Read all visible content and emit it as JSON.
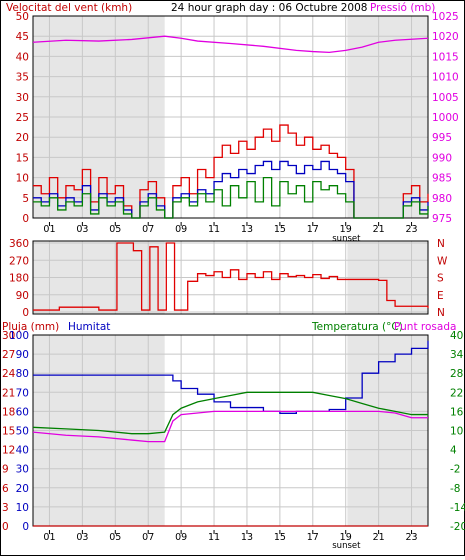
{
  "colors": {
    "wind": "#e00000",
    "wind_avg": "#0000c0",
    "gust_green": "#008000",
    "pressure": "#e000e0",
    "direction": "#e00000",
    "rain": "#c00000",
    "humidity": "#0000c0",
    "temperature": "#008000",
    "dewpoint": "#e000e0",
    "grid": "#c8c8c8",
    "night": "#e6e6e6",
    "axis_red": "#c00000",
    "axis_blue": "#0000c0",
    "axis_green": "#008000"
  },
  "header": {
    "left": "Velocitat del vent (kmh)",
    "center": "24 hour graph day : 06 Octubre 2008",
    "right": "Pressió (mb)"
  },
  "time_axis": {
    "ticks": [
      "01",
      "03",
      "05",
      "07",
      "09",
      "11",
      "13",
      "15",
      "17",
      "19",
      "21",
      "23"
    ],
    "tick_hours": [
      1,
      3,
      5,
      7,
      9,
      11,
      13,
      15,
      17,
      19,
      21,
      23
    ],
    "sunset_label": "sunset",
    "sunset_hour": 19.1,
    "night_ranges": [
      [
        0,
        8.0
      ],
      [
        19.1,
        24
      ]
    ]
  },
  "chart_data": [
    {
      "type": "line",
      "panel": "wind_pressure",
      "yleft": {
        "ticks": [
          "0",
          "5",
          "10",
          "15",
          "20",
          "25",
          "30",
          "35",
          "40",
          "45",
          "50"
        ],
        "range": [
          0,
          50
        ]
      },
      "yright": {
        "ticks": [
          "975",
          "980",
          "985",
          "990",
          "995",
          "1000",
          "1005",
          "1010",
          "1015",
          "1020",
          "1025"
        ],
        "range": [
          975,
          1025
        ]
      },
      "series": [
        {
          "name": "Velocitat del vent (kmh)",
          "key": "wind_gust",
          "x": [
            0,
            0.5,
            1,
            1.5,
            2,
            2.5,
            3,
            3.5,
            4,
            4.5,
            5,
            5.5,
            6,
            6.5,
            7,
            7.5,
            8,
            8.5,
            9,
            9.5,
            10,
            10.5,
            11,
            11.5,
            12,
            12.5,
            13,
            13.5,
            14,
            14.5,
            15,
            15.5,
            16,
            16.5,
            17,
            17.5,
            18,
            18.5,
            19,
            19.5,
            20,
            20.5,
            21,
            21.5,
            22,
            22.5,
            23,
            23.5,
            24
          ],
          "values": [
            8,
            6,
            10,
            5,
            8,
            7,
            12,
            4,
            10,
            6,
            8,
            3,
            0,
            7,
            9,
            5,
            0,
            8,
            10,
            6,
            12,
            10,
            15,
            18,
            16,
            19,
            17,
            20,
            22,
            19,
            23,
            21,
            18,
            20,
            17,
            18,
            16,
            15,
            12,
            0,
            0,
            0,
            0,
            0,
            0,
            6,
            8,
            4,
            6
          ]
        },
        {
          "name": "",
          "key": "wind_avg",
          "x": [
            0,
            0.5,
            1,
            1.5,
            2,
            2.5,
            3,
            3.5,
            4,
            4.5,
            5,
            5.5,
            6,
            6.5,
            7,
            7.5,
            8,
            8.5,
            9,
            9.5,
            10,
            10.5,
            11,
            11.5,
            12,
            12.5,
            13,
            13.5,
            14,
            14.5,
            15,
            15.5,
            16,
            16.5,
            17,
            17.5,
            18,
            18.5,
            19,
            19.5,
            20,
            20.5,
            21,
            21.5,
            22,
            22.5,
            23,
            23.5,
            24
          ],
          "values": [
            5,
            4,
            6,
            3,
            5,
            4,
            8,
            2,
            6,
            4,
            5,
            2,
            0,
            4,
            6,
            3,
            0,
            5,
            6,
            4,
            7,
            6,
            9,
            11,
            10,
            12,
            11,
            13,
            14,
            12,
            14,
            13,
            11,
            13,
            12,
            14,
            12,
            11,
            9,
            0,
            0,
            0,
            0,
            0,
            0,
            4,
            5,
            2,
            4
          ]
        },
        {
          "name": "",
          "key": "wind_green",
          "x": [
            0,
            0.5,
            1,
            1.5,
            2,
            2.5,
            3,
            3.5,
            4,
            4.5,
            5,
            5.5,
            6,
            6.5,
            7,
            7.5,
            8,
            8.5,
            9,
            9.5,
            10,
            10.5,
            11,
            11.5,
            12,
            12.5,
            13,
            13.5,
            14,
            14.5,
            15,
            15.5,
            16,
            16.5,
            17,
            17.5,
            18,
            18.5,
            19,
            19.5,
            20,
            20.5,
            21,
            21.5,
            22,
            22.5,
            23,
            23.5,
            24
          ],
          "values": [
            4,
            3,
            5,
            2,
            4,
            3,
            6,
            1,
            5,
            3,
            4,
            1,
            0,
            3,
            5,
            2,
            0,
            4,
            5,
            3,
            6,
            4,
            7,
            3,
            8,
            5,
            9,
            4,
            10,
            3,
            9,
            6,
            8,
            4,
            9,
            7,
            8,
            6,
            4,
            0,
            0,
            0,
            0,
            0,
            0,
            3,
            4,
            1,
            3
          ]
        },
        {
          "name": "Pressió (mb)",
          "key": "pressure",
          "axis": "right",
          "x": [
            0,
            2,
            4,
            6,
            8,
            9,
            10,
            12,
            14,
            16,
            17,
            18,
            19,
            20,
            21,
            22,
            24
          ],
          "values": [
            1018.5,
            1019,
            1018.8,
            1019.2,
            1020,
            1019.5,
            1018.8,
            1018.2,
            1017.5,
            1016.5,
            1016.2,
            1016,
            1016.5,
            1017.3,
            1018.5,
            1019,
            1019.5
          ]
        }
      ]
    },
    {
      "type": "line",
      "panel": "direction",
      "yleft": {
        "ticks": [
          "360",
          "270",
          "180",
          "90",
          "0"
        ],
        "range": [
          0,
          360
        ]
      },
      "yright": {
        "ticks": [
          "N",
          "W",
          "S",
          "E",
          "N"
        ]
      },
      "series": [
        {
          "name": "",
          "key": "direction",
          "x": [
            0,
            1.5,
            1.6,
            4,
            5,
            5.1,
            6,
            6.1,
            6.5,
            6.6,
            7,
            7.1,
            7.5,
            7.6,
            8,
            8.1,
            8.5,
            8.6,
            9.3,
            9.4,
            10,
            10.5,
            11,
            11.5,
            12,
            12.5,
            13,
            13.5,
            14,
            14.5,
            15,
            15.5,
            16,
            16.5,
            17,
            17.5,
            18,
            18.5,
            19,
            19.5,
            20,
            20.5,
            21,
            21.5,
            22,
            23,
            24
          ],
          "values": [
            10,
            10,
            25,
            10,
            10,
            360,
            360,
            320,
            320,
            10,
            10,
            340,
            340,
            10,
            10,
            360,
            360,
            10,
            10,
            160,
            200,
            190,
            210,
            180,
            220,
            170,
            200,
            180,
            210,
            170,
            200,
            185,
            190,
            180,
            195,
            175,
            185,
            170,
            170,
            170,
            170,
            170,
            165,
            60,
            30,
            30,
            20
          ]
        }
      ]
    },
    {
      "type": "line",
      "panel": "rain_hum_temp",
      "left_labels": {
        "rain": "Pluja (mm)",
        "humidity": "Humitat",
        "rain_ticks": [
          "30",
          "27",
          "24",
          "21",
          "18",
          "15",
          "12",
          "9",
          "6",
          "3",
          "0"
        ],
        "humidity_ticks": [
          "100",
          "90",
          "80",
          "70",
          "60",
          "50",
          "40",
          "30",
          "20",
          "10",
          "0"
        ]
      },
      "right_label": {
        "temperature": "Temperatura (°C)",
        "dewpoint": "Punt rosada"
      },
      "yright": {
        "ticks": [
          "40",
          "34",
          "28",
          "22",
          "16",
          "10",
          "4",
          "-2",
          "-8",
          "-14",
          "-20"
        ],
        "range": [
          -20,
          40
        ]
      },
      "series": [
        {
          "name": "Humitat",
          "key": "humidity",
          "axis": "humidity",
          "x": [
            0,
            2,
            4,
            6,
            7,
            8,
            8.5,
            9,
            10,
            11,
            12,
            13,
            14,
            15,
            16,
            17,
            18,
            19,
            20,
            21,
            22,
            23,
            24
          ],
          "values": [
            79,
            79,
            79,
            79,
            79,
            79,
            76,
            72,
            69,
            65,
            62,
            62,
            60,
            59,
            60,
            60,
            61,
            67,
            80,
            86,
            90,
            93,
            97
          ]
        },
        {
          "name": "Temperatura (°C)",
          "key": "temperature",
          "axis": "right",
          "x": [
            0,
            2,
            4,
            6,
            7,
            8,
            8.5,
            9,
            10,
            11,
            12,
            13,
            14,
            15,
            16,
            17,
            18,
            19,
            20,
            21,
            22,
            23,
            24
          ],
          "values": [
            11,
            10.5,
            10,
            9,
            9,
            9.5,
            15,
            17,
            19,
            20,
            21,
            22,
            22,
            22,
            22,
            22,
            21,
            20,
            18.5,
            17,
            16,
            15,
            15
          ]
        },
        {
          "name": "Punt rosada",
          "key": "dewpoint",
          "axis": "right",
          "x": [
            0,
            2,
            4,
            6,
            7,
            8,
            8.5,
            9,
            10,
            11,
            12,
            13,
            14,
            15,
            16,
            17,
            18,
            19,
            20,
            21,
            22,
            23,
            24
          ],
          "values": [
            9.5,
            8.5,
            8,
            7,
            6.5,
            6.5,
            13,
            15,
            15.5,
            16,
            16,
            16,
            16,
            16,
            16,
            16,
            16,
            16,
            16,
            16,
            15.5,
            14,
            14
          ]
        },
        {
          "name": "Pluja (mm)",
          "key": "rain",
          "axis": "rain",
          "x": [
            0,
            24
          ],
          "values": [
            0,
            0
          ]
        }
      ]
    }
  ]
}
